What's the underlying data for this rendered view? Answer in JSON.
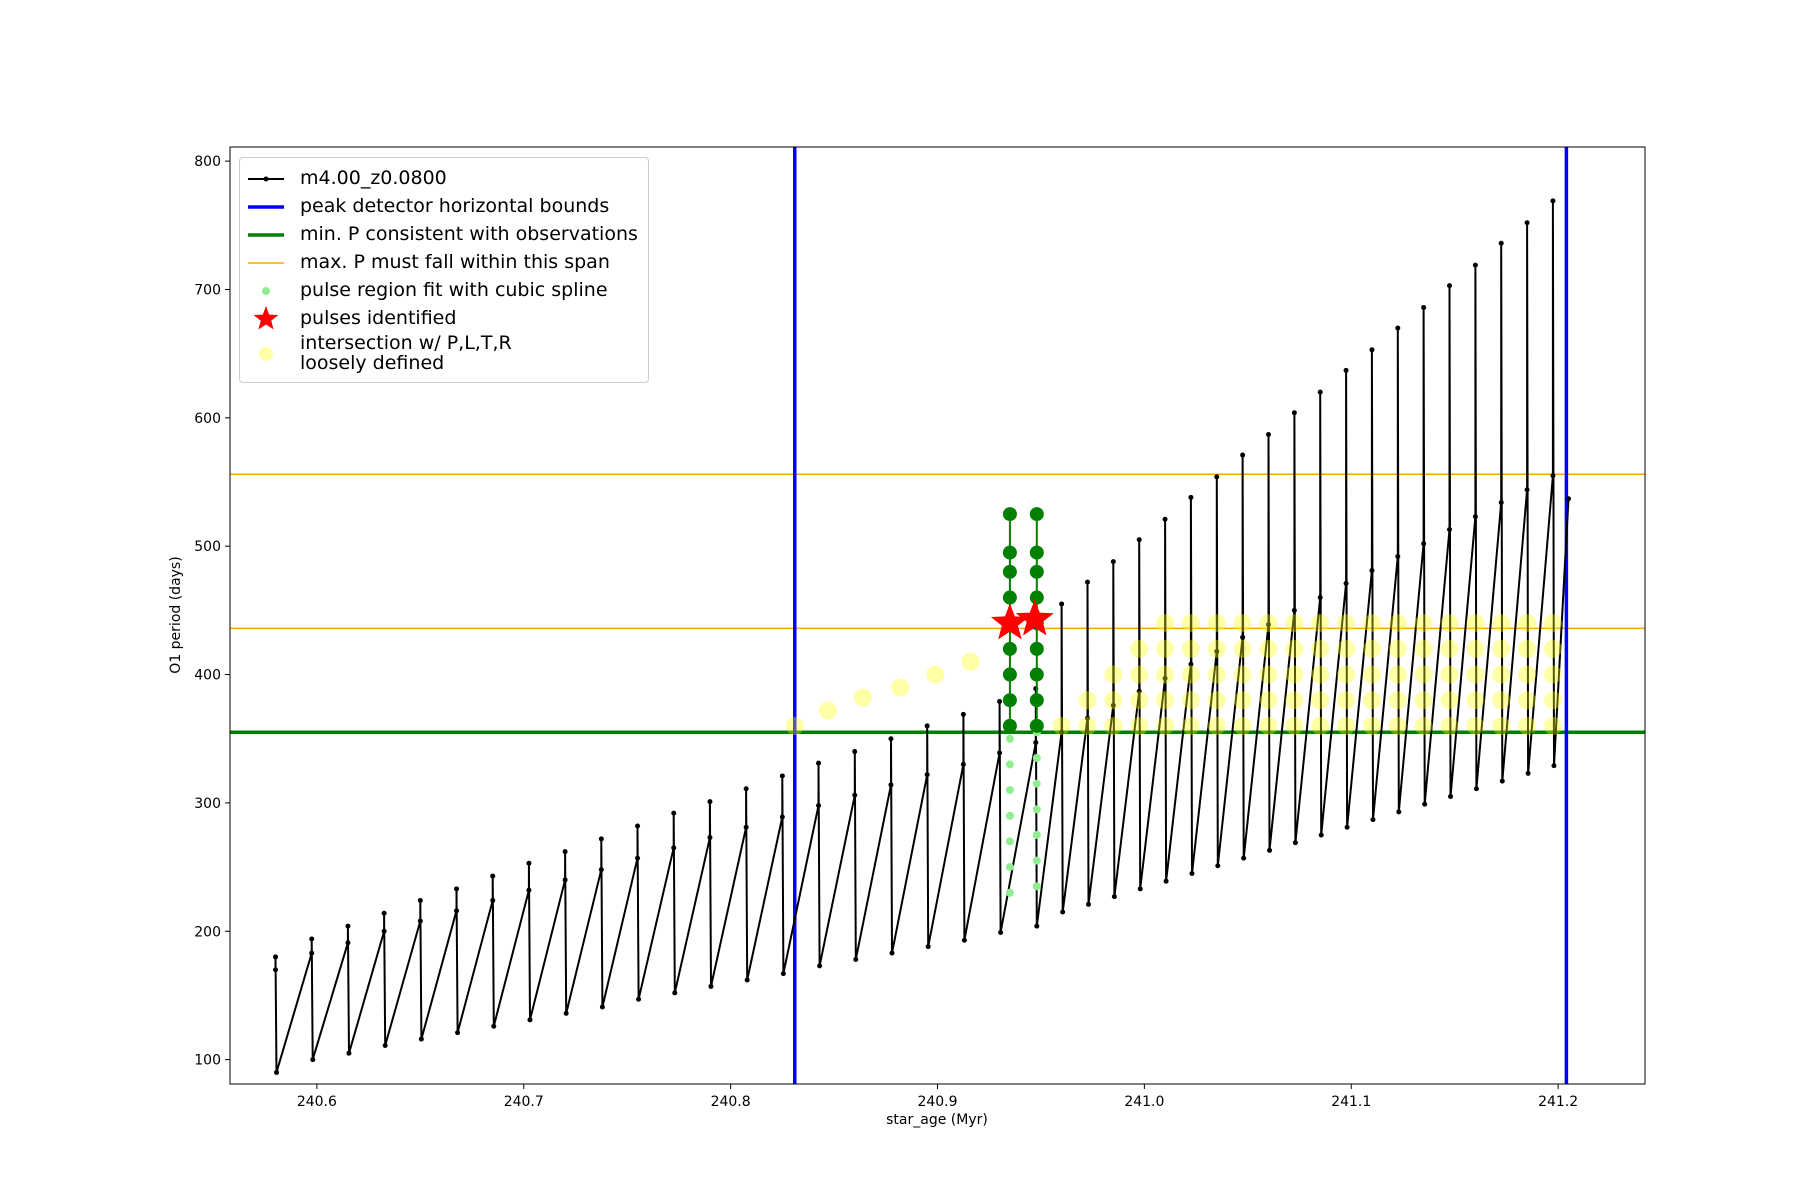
{
  "chart_data": {
    "type": "line",
    "xlabel": "star_age (Myr)",
    "ylabel": "O1 period (days)",
    "xlim": [
      240.558,
      241.242
    ],
    "ylim": [
      81,
      811
    ],
    "xticks": [
      240.6,
      240.7,
      240.8,
      240.9,
      {
        "value": 241,
        "label": "241.0"
      },
      241.1,
      241.2
    ],
    "yticks": [
      100,
      200,
      300,
      400,
      500,
      600,
      700,
      800
    ],
    "legend": "upper left",
    "series": [
      {
        "name": "m4.00_z0.0800",
        "kind": "line",
        "color": "#000000",
        "linewidth": 2,
        "x": [
          240.58,
          240.58,
          240.5805,
          240.5975,
          240.5975,
          240.598,
          240.615,
          240.615,
          240.6155,
          240.6325,
          240.6325,
          240.633,
          240.65,
          240.65,
          240.6505,
          240.6675,
          240.6675,
          240.668,
          240.685,
          240.685,
          240.6855,
          240.7025,
          240.7025,
          240.703,
          240.72,
          240.72,
          240.7205,
          240.7375,
          240.7375,
          240.738,
          240.755,
          240.755,
          240.7555,
          240.7725,
          240.7725,
          240.773,
          240.79,
          240.79,
          240.7905,
          240.8075,
          240.8075,
          240.808,
          240.825,
          240.825,
          240.8255,
          240.8425,
          240.8425,
          240.843,
          240.86,
          240.86,
          240.8605,
          240.8775,
          240.8775,
          240.878,
          240.895,
          240.895,
          240.8955,
          240.9125,
          240.9125,
          240.913,
          240.93,
          240.93,
          240.9305,
          240.9475,
          240.9475,
          240.948,
          240.96,
          240.96,
          240.9605,
          240.9725,
          240.9725,
          240.973,
          240.985,
          240.985,
          240.9855,
          240.9975,
          240.9975,
          240.998,
          241.01,
          241.01,
          241.0105,
          241.0225,
          241.0225,
          241.023,
          241.035,
          241.035,
          241.0355,
          241.0475,
          241.0475,
          241.048,
          241.06,
          241.06,
          241.0605,
          241.0725,
          241.0725,
          241.073,
          241.085,
          241.085,
          241.0855,
          241.0975,
          241.0975,
          241.098,
          241.11,
          241.11,
          241.1105,
          241.1225,
          241.1225,
          241.123,
          241.135,
          241.135,
          241.1355,
          241.1475,
          241.1475,
          241.148,
          241.16,
          241.16,
          241.1605,
          241.1725,
          241.1725,
          241.173,
          241.185,
          241.185,
          241.1855,
          241.1975,
          241.1975,
          241.198,
          241.205
        ],
        "values": [
          170,
          180,
          90,
          183,
          194,
          100,
          191,
          204,
          105,
          200,
          214,
          111,
          208,
          224,
          116,
          216,
          233,
          121,
          224,
          243,
          126,
          232,
          253,
          131,
          240,
          262,
          136,
          248,
          272,
          141,
          257,
          282,
          147,
          265,
          292,
          152,
          273,
          301,
          157,
          281,
          311,
          162,
          289,
          321,
          167,
          298,
          331,
          173,
          306,
          340,
          178,
          314,
          350,
          183,
          322,
          360,
          188,
          330,
          369,
          193,
          339,
          379,
          199,
          347,
          389,
          204,
          355,
          455,
          215,
          366,
          472,
          221,
          376,
          488,
          227,
          387,
          505,
          233,
          397,
          521,
          239,
          408,
          538,
          245,
          418,
          554,
          251,
          429,
          571,
          257,
          439,
          587,
          263,
          450,
          604,
          269,
          460,
          620,
          275,
          471,
          637,
          281,
          481,
          653,
          287,
          492,
          670,
          293,
          502,
          686,
          299,
          513,
          703,
          305,
          523,
          719,
          311,
          534,
          736,
          317,
          544,
          752,
          323,
          555,
          769,
          329,
          537
        ]
      },
      {
        "name": "peak detector horizontal bounds",
        "kind": "vline",
        "color": "#0000ff",
        "linewidth": 3.5,
        "x": [
          240.831,
          241.204
        ]
      },
      {
        "name": "min. P consistent with observations",
        "kind": "hline",
        "color": "#008000",
        "linewidth": 3.5,
        "values": [
          355
        ]
      },
      {
        "name": "max. P must fall within this span",
        "kind": "hline",
        "color": "#ffa500",
        "linewidth": 1.5,
        "values": [
          436,
          556
        ]
      },
      {
        "kind": "fit",
        "color": "#008000",
        "size": 7,
        "x": [
          240.935,
          240.935,
          240.935,
          240.935,
          240.935,
          240.935,
          240.935,
          240.935,
          240.935,
          null,
          240.948,
          240.948,
          240.948,
          240.948,
          240.948,
          240.948,
          240.948,
          240.948,
          240.948
        ],
        "values": [
          360,
          380,
          400,
          420,
          440,
          460,
          480,
          495,
          525,
          null,
          360,
          380,
          400,
          420,
          440,
          460,
          480,
          495,
          525
        ]
      },
      {
        "name": "pulse region fit with cubic spline",
        "kind": "scatter",
        "color": "#90ee90",
        "size": 4,
        "opacity": 1,
        "x": [
          240.935,
          240.935,
          240.935,
          240.935,
          240.935,
          240.935,
          240.935,
          240.948,
          240.948,
          240.948,
          240.948,
          240.948,
          240.948,
          240.948
        ],
        "values": [
          230,
          250,
          270,
          290,
          310,
          330,
          350,
          235,
          255,
          275,
          295,
          315,
          335,
          355
        ]
      },
      {
        "name": "pulses identified",
        "kind": "star",
        "color": "#ff0000",
        "size": 20,
        "x": [
          240.935,
          240.947
        ],
        "values": [
          440,
          443
        ]
      },
      {
        "name": "intersection w/ P,L,T,R\nloosely defined",
        "kind": "scatter",
        "color": "#ffff00",
        "size": 9,
        "opacity": 0.35,
        "x": [
          240.831,
          240.847,
          240.864,
          240.882,
          240.899,
          240.916,
          240.96,
          240.9725,
          240.9725,
          240.985,
          240.985,
          240.985,
          240.9975,
          240.9975,
          240.9975,
          240.9975,
          241.01,
          241.01,
          241.01,
          241.01,
          241.01,
          241.0225,
          241.0225,
          241.0225,
          241.0225,
          241.0225,
          241.035,
          241.035,
          241.035,
          241.035,
          241.035,
          241.0475,
          241.0475,
          241.0475,
          241.0475,
          241.0475,
          241.06,
          241.06,
          241.06,
          241.06,
          241.06,
          241.0725,
          241.0725,
          241.0725,
          241.0725,
          241.0725,
          241.085,
          241.085,
          241.085,
          241.085,
          241.085,
          241.0975,
          241.0975,
          241.0975,
          241.0975,
          241.0975,
          241.11,
          241.11,
          241.11,
          241.11,
          241.11,
          241.1225,
          241.1225,
          241.1225,
          241.1225,
          241.1225,
          241.135,
          241.135,
          241.135,
          241.135,
          241.135,
          241.1475,
          241.1475,
          241.1475,
          241.1475,
          241.1475,
          241.16,
          241.16,
          241.16,
          241.16,
          241.16,
          241.1725,
          241.1725,
          241.1725,
          241.1725,
          241.1725,
          241.185,
          241.185,
          241.185,
          241.185,
          241.185,
          241.1975,
          241.1975,
          241.1975,
          241.1975,
          241.1975
        ],
        "values": [
          360,
          372,
          382,
          390,
          400,
          410,
          360,
          360,
          380,
          360,
          380,
          400,
          360,
          380,
          400,
          420,
          360,
          380,
          400,
          420,
          440,
          360,
          380,
          400,
          420,
          440,
          360,
          380,
          400,
          420,
          440,
          360,
          380,
          400,
          420,
          440,
          360,
          380,
          400,
          420,
          440,
          360,
          380,
          400,
          420,
          440,
          360,
          380,
          400,
          420,
          440,
          360,
          380,
          400,
          420,
          440,
          360,
          380,
          400,
          420,
          440,
          360,
          380,
          400,
          420,
          440,
          360,
          380,
          400,
          420,
          440,
          360,
          380,
          400,
          420,
          440,
          360,
          380,
          400,
          420,
          440,
          360,
          380,
          400,
          420,
          440,
          360,
          380,
          400,
          420,
          440,
          360,
          380,
          400,
          420,
          440
        ]
      }
    ]
  }
}
